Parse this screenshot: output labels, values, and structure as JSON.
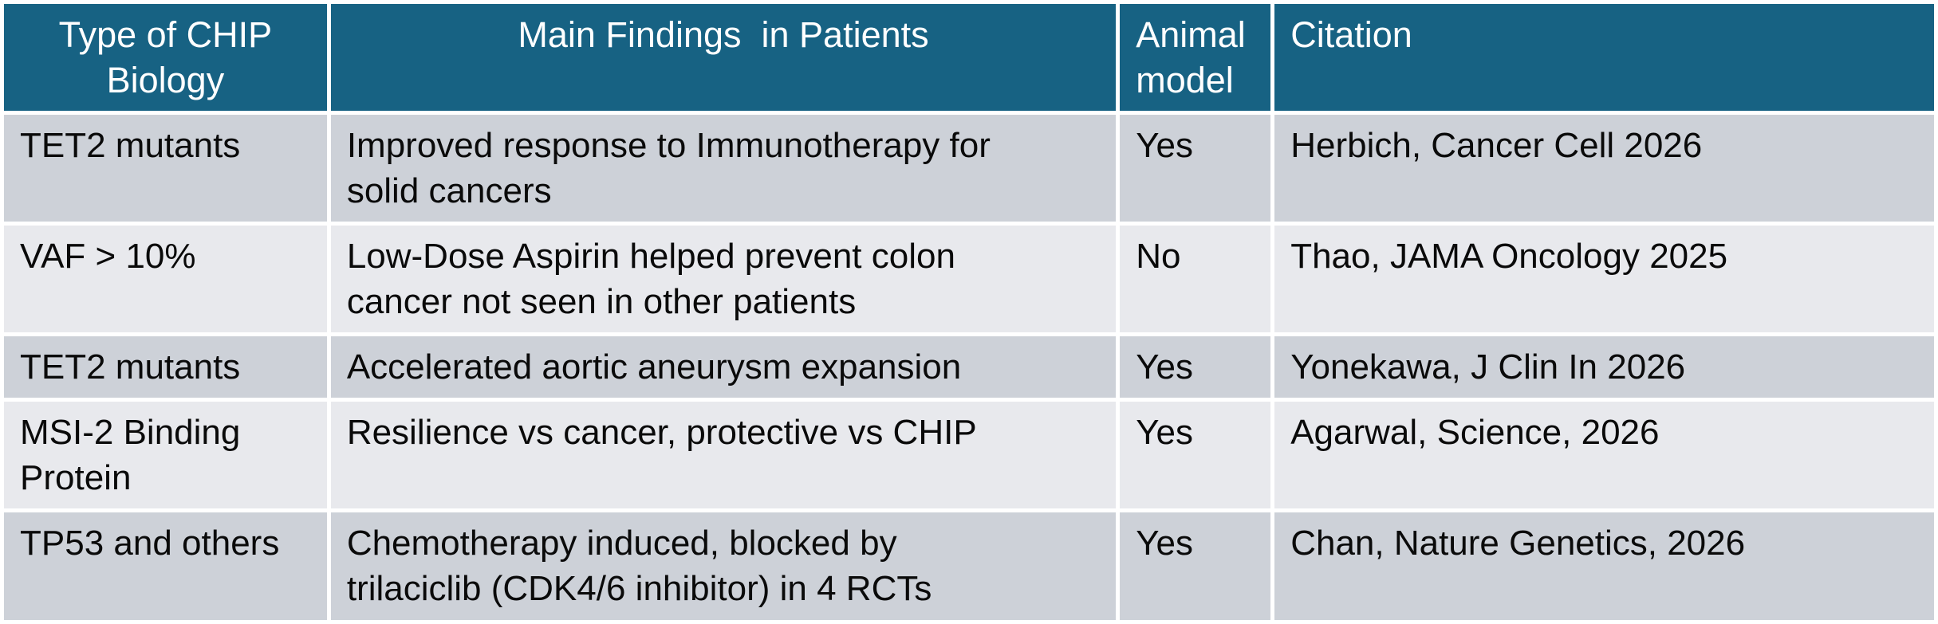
{
  "colors": {
    "header_background": "#176283",
    "header_text": "#ffffff",
    "row_stripe_dark": "#cdd1d8",
    "row_stripe_light": "#e8e9ed",
    "grid_lines": "#ffffff",
    "body_text": "#0a0a0a"
  },
  "table": {
    "columns": [
      {
        "id": "type",
        "label": "Type of CHIP\nBiology"
      },
      {
        "id": "finding",
        "label": "Main Findings  in Patients"
      },
      {
        "id": "animal",
        "label": "Animal\nmodel"
      },
      {
        "id": "citation",
        "label": "Citation"
      }
    ],
    "rows": [
      {
        "shade": "dark",
        "type": "TET2 mutants",
        "finding": "Improved response to Immunotherapy for\nsolid cancers",
        "animal": "Yes",
        "citation": "Herbich, Cancer Cell 2026"
      },
      {
        "shade": "light",
        "type": "VAF > 10%",
        "finding": "Low-Dose Aspirin helped prevent colon\ncancer not seen in other patients",
        "animal": "No",
        "citation": "Thao, JAMA Oncology 2025"
      },
      {
        "shade": "dark",
        "type": "TET2 mutants",
        "finding": "Accelerated aortic aneurysm expansion",
        "animal": "Yes",
        "citation": "Yonekawa, J Clin In 2026"
      },
      {
        "shade": "light",
        "type": "MSI-2 Binding\nProtein",
        "finding": "Resilience vs cancer, protective vs CHIP",
        "animal": "Yes",
        "citation": "Agarwal, Science, 2026"
      },
      {
        "shade": "dark",
        "type": "TP53 and others",
        "finding": "Chemotherapy induced, blocked by\ntrilaciclib (CDK4/6 inhibitor) in 4 RCTs",
        "animal": "Yes",
        "citation": "Chan, Nature Genetics, 2026"
      }
    ]
  }
}
